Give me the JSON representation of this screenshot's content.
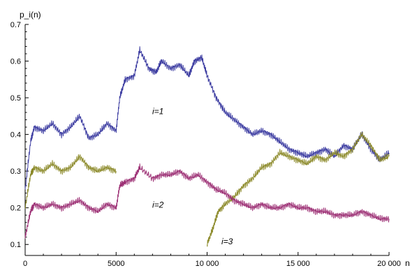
{
  "chart_data": {
    "type": "line",
    "ylabel": "p_i(n)",
    "xlabel": "n",
    "xlim": [
      0,
      20000
    ],
    "ylim": [
      0.07,
      0.7
    ],
    "x_ticks": [
      0,
      5000,
      10000,
      15000,
      20000
    ],
    "x_tick_labels": [
      "0",
      "5000",
      "10 000",
      "15 000",
      "20 000"
    ],
    "y_ticks": [
      0.1,
      0.2,
      0.3,
      0.4,
      0.5,
      0.6,
      0.7
    ],
    "y_tick_labels": [
      "0.1",
      "0.2",
      "0.3",
      "0.4",
      "0.5",
      "0.6",
      "0.7"
    ],
    "grid": false,
    "annotations": [
      {
        "text": "i=1",
        "x": 7300,
        "y": 0.455
      },
      {
        "text": "i=2",
        "x": 7300,
        "y": 0.2
      },
      {
        "text": "i=3",
        "x": 11100,
        "y": 0.1
      }
    ],
    "series": [
      {
        "color": "#3a3aa0",
        "points": [
          [
            0,
            0.25
          ],
          [
            300,
            0.38
          ],
          [
            500,
            0.42
          ],
          [
            1000,
            0.41
          ],
          [
            1500,
            0.43
          ],
          [
            2000,
            0.4
          ],
          [
            2500,
            0.42
          ],
          [
            3000,
            0.45
          ],
          [
            3500,
            0.39
          ],
          [
            4000,
            0.4
          ],
          [
            4500,
            0.43
          ],
          [
            5000,
            0.41
          ],
          [
            5200,
            0.5
          ],
          [
            5500,
            0.55
          ],
          [
            6000,
            0.56
          ],
          [
            6300,
            0.63
          ],
          [
            6800,
            0.58
          ],
          [
            7200,
            0.57
          ],
          [
            7500,
            0.6
          ],
          [
            8000,
            0.58
          ],
          [
            8500,
            0.59
          ],
          [
            9000,
            0.56
          ],
          [
            9300,
            0.6
          ],
          [
            9700,
            0.61
          ],
          [
            10000,
            0.56
          ],
          [
            10500,
            0.5
          ],
          [
            11000,
            0.46
          ],
          [
            11500,
            0.44
          ],
          [
            12000,
            0.42
          ],
          [
            12500,
            0.4
          ],
          [
            13000,
            0.41
          ],
          [
            13500,
            0.4
          ],
          [
            14000,
            0.38
          ],
          [
            14500,
            0.36
          ],
          [
            15000,
            0.35
          ],
          [
            15500,
            0.34
          ],
          [
            16000,
            0.35
          ],
          [
            16500,
            0.36
          ],
          [
            17000,
            0.34
          ],
          [
            17500,
            0.37
          ],
          [
            18000,
            0.36
          ],
          [
            18500,
            0.4
          ],
          [
            19000,
            0.36
          ],
          [
            19500,
            0.33
          ],
          [
            20000,
            0.35
          ]
        ]
      },
      {
        "color": "#8c8a2a",
        "segments": [
          [
            [
              0,
              0.2
            ],
            [
              300,
              0.29
            ],
            [
              500,
              0.31
            ],
            [
              1000,
              0.3
            ],
            [
              1500,
              0.32
            ],
            [
              2000,
              0.3
            ],
            [
              2500,
              0.31
            ],
            [
              3000,
              0.34
            ],
            [
              3500,
              0.31
            ],
            [
              4000,
              0.3
            ],
            [
              4500,
              0.31
            ],
            [
              5000,
              0.3
            ]
          ],
          [
            [
              10000,
              0.1
            ],
            [
              10300,
              0.14
            ],
            [
              10600,
              0.19
            ],
            [
              11000,
              0.21
            ],
            [
              11500,
              0.23
            ],
            [
              12000,
              0.26
            ],
            [
              12500,
              0.28
            ],
            [
              13000,
              0.31
            ],
            [
              13500,
              0.32
            ],
            [
              14000,
              0.35
            ],
            [
              14500,
              0.34
            ],
            [
              15000,
              0.33
            ],
            [
              15500,
              0.32
            ],
            [
              16000,
              0.34
            ],
            [
              16500,
              0.33
            ],
            [
              17000,
              0.35
            ],
            [
              17500,
              0.34
            ],
            [
              18000,
              0.36
            ],
            [
              18500,
              0.4
            ],
            [
              19000,
              0.37
            ],
            [
              19500,
              0.33
            ],
            [
              20000,
              0.34
            ]
          ]
        ]
      },
      {
        "color": "#9c2f74",
        "points": [
          [
            0,
            0.12
          ],
          [
            300,
            0.19
          ],
          [
            500,
            0.21
          ],
          [
            1000,
            0.2
          ],
          [
            1500,
            0.21
          ],
          [
            2000,
            0.2
          ],
          [
            2500,
            0.21
          ],
          [
            3000,
            0.22
          ],
          [
            3500,
            0.2
          ],
          [
            4000,
            0.19
          ],
          [
            4500,
            0.21
          ],
          [
            5000,
            0.2
          ],
          [
            5200,
            0.26
          ],
          [
            5500,
            0.27
          ],
          [
            6000,
            0.28
          ],
          [
            6300,
            0.31
          ],
          [
            7000,
            0.28
          ],
          [
            7500,
            0.29
          ],
          [
            8000,
            0.29
          ],
          [
            8500,
            0.3
          ],
          [
            9000,
            0.28
          ],
          [
            9500,
            0.29
          ],
          [
            10000,
            0.27
          ],
          [
            10500,
            0.25
          ],
          [
            11000,
            0.24
          ],
          [
            11500,
            0.22
          ],
          [
            12000,
            0.21
          ],
          [
            12500,
            0.2
          ],
          [
            13000,
            0.21
          ],
          [
            13500,
            0.2
          ],
          [
            14000,
            0.2
          ],
          [
            14500,
            0.21
          ],
          [
            15000,
            0.2
          ],
          [
            15500,
            0.2
          ],
          [
            16000,
            0.19
          ],
          [
            16500,
            0.19
          ],
          [
            17000,
            0.18
          ],
          [
            17500,
            0.18
          ],
          [
            18000,
            0.18
          ],
          [
            18500,
            0.19
          ],
          [
            19000,
            0.18
          ],
          [
            19500,
            0.17
          ],
          [
            20000,
            0.17
          ]
        ]
      }
    ]
  }
}
